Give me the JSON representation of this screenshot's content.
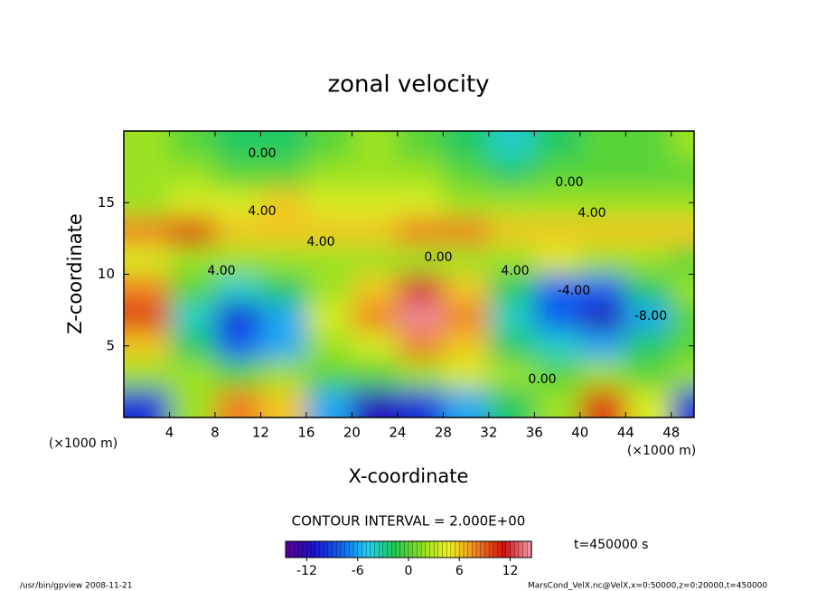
{
  "chart_data": {
    "type": "heatmap",
    "title": "zonal velocity",
    "xlabel": "X-coordinate",
    "ylabel": "Z-coordinate",
    "x_unit": "(×1000 m)",
    "x": [
      2,
      6,
      10,
      14,
      18,
      22,
      26,
      30,
      34,
      38,
      42,
      46,
      50
    ],
    "y": [
      19,
      17,
      15,
      13,
      11,
      9,
      7,
      5,
      3,
      1
    ],
    "z": [
      [
        2,
        0,
        -2,
        -2,
        0,
        2,
        0,
        -2,
        -4,
        -2,
        0,
        0,
        2
      ],
      [
        2,
        2,
        0,
        0,
        2,
        2,
        2,
        0,
        -2,
        0,
        0,
        0,
        0
      ],
      [
        2,
        4,
        4,
        6,
        4,
        4,
        4,
        2,
        2,
        2,
        2,
        2,
        2
      ],
      [
        8,
        10,
        6,
        6,
        6,
        6,
        8,
        8,
        6,
        6,
        6,
        6,
        6
      ],
      [
        4,
        2,
        2,
        2,
        2,
        2,
        2,
        2,
        2,
        4,
        2,
        2,
        0
      ],
      [
        8,
        0,
        -4,
        -2,
        2,
        6,
        12,
        6,
        -2,
        -8,
        -8,
        -2,
        2
      ],
      [
        10,
        -4,
        -10,
        -6,
        4,
        8,
        14,
        8,
        -4,
        -8,
        -12,
        -6,
        0
      ],
      [
        6,
        -2,
        -8,
        -6,
        2,
        4,
        8,
        6,
        -2,
        -4,
        -6,
        -2,
        0
      ],
      [
        2,
        2,
        0,
        2,
        0,
        0,
        2,
        4,
        2,
        0,
        2,
        0,
        2
      ],
      [
        -10,
        2,
        8,
        6,
        -6,
        -12,
        -10,
        -6,
        -2,
        2,
        10,
        4,
        -10
      ]
    ],
    "xlim": [
      0,
      50
    ],
    "ylim": [
      0,
      20
    ],
    "xticks": [
      4,
      8,
      12,
      16,
      20,
      24,
      28,
      32,
      36,
      40,
      44,
      48
    ],
    "yticks": [
      5,
      10,
      15
    ],
    "contour_labels": [
      "0.00",
      "0.00",
      "4.00",
      "4.00",
      "4.00",
      "0.00",
      "4.00",
      "-4.00",
      "4.00",
      "-8.00",
      "0.00"
    ],
    "contour_interval": "CONTOUR INTERVAL = 2.000E+00",
    "time_label": "t=450000 s",
    "colormap": [
      "#5a0090",
      "#1a10c8",
      "#1060f0",
      "#20d0f0",
      "#20c850",
      "#90e020",
      "#f0f020",
      "#f08020",
      "#d01010",
      "#f0a0b0"
    ],
    "clim": [
      -14.5,
      14.5
    ],
    "colorbar_ticks": [
      -12,
      -6,
      0,
      6,
      12
    ],
    "footer_left": "/usr/bin/gpview  2008-11-21",
    "footer_right": "MarsCond_VelX.nc@VelX,x=0:50000,z=0:20000,t=450000"
  }
}
